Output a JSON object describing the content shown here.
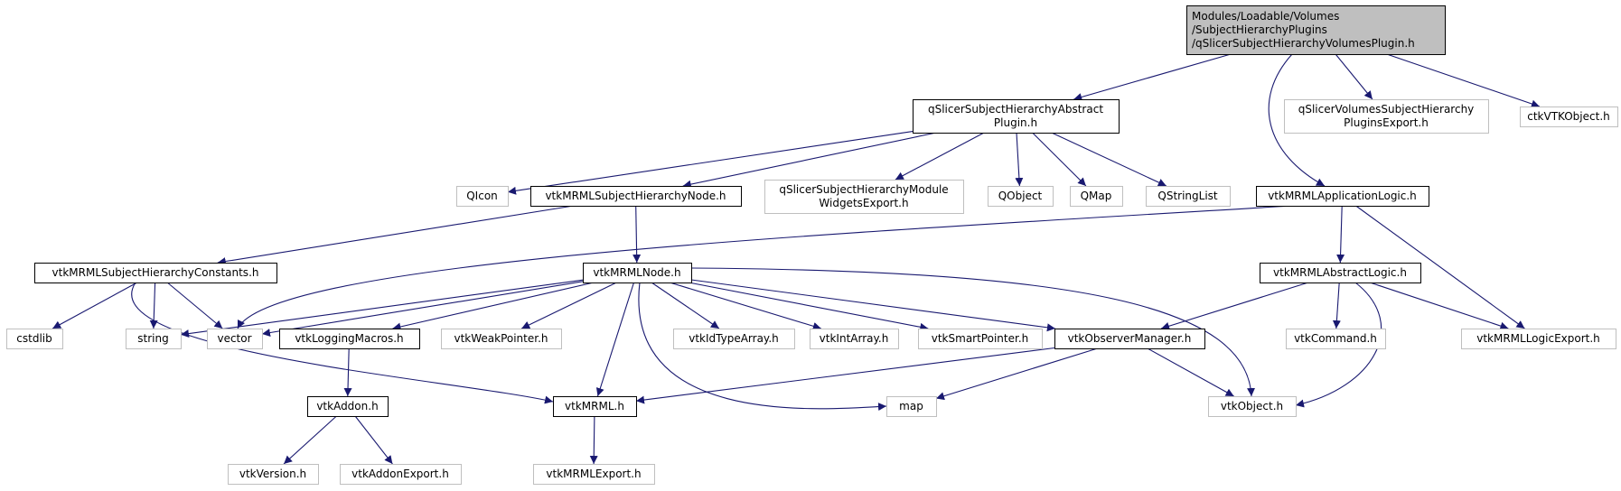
{
  "colors": {
    "edge": "#191970",
    "root_fill": "#bfbfbf",
    "node_border": "#000000",
    "external_border": "#bfbfbf"
  },
  "nodes": [
    {
      "id": "root",
      "label": [
        "Modules/Loadable/Volumes",
        "/SubjectHierarchyPlugins",
        "/qSlicerSubjectHierarchyVolumesPlugin.h"
      ],
      "kind": "root"
    },
    {
      "id": "abstractPlugin",
      "label": [
        "qSlicerSubjectHierarchyAbstract",
        "Plugin.h"
      ],
      "kind": "solid"
    },
    {
      "id": "volExport",
      "label": [
        "qSlicerVolumesSubjectHierarchy",
        "PluginsExport.h"
      ],
      "kind": "ext"
    },
    {
      "id": "ctkVTKObject",
      "label": [
        "ctkVTKObject.h"
      ],
      "kind": "ext"
    },
    {
      "id": "QIcon",
      "label": [
        "QIcon"
      ],
      "kind": "ext"
    },
    {
      "id": "shNode",
      "label": [
        "vtkMRMLSubjectHierarchyNode.h"
      ],
      "kind": "solid"
    },
    {
      "id": "moduleWidgetsExport",
      "label": [
        "qSlicerSubjectHierarchyModule",
        "WidgetsExport.h"
      ],
      "kind": "ext"
    },
    {
      "id": "QObject",
      "label": [
        "QObject"
      ],
      "kind": "ext"
    },
    {
      "id": "QMap",
      "label": [
        "QMap"
      ],
      "kind": "ext"
    },
    {
      "id": "QStringList",
      "label": [
        "QStringList"
      ],
      "kind": "ext"
    },
    {
      "id": "appLogic",
      "label": [
        "vtkMRMLApplicationLogic.h"
      ],
      "kind": "solid"
    },
    {
      "id": "shConstants",
      "label": [
        "vtkMRMLSubjectHierarchyConstants.h"
      ],
      "kind": "solid"
    },
    {
      "id": "mrmlNode",
      "label": [
        "vtkMRMLNode.h"
      ],
      "kind": "solid"
    },
    {
      "id": "abstractLogic",
      "label": [
        "vtkMRMLAbstractLogic.h"
      ],
      "kind": "solid"
    },
    {
      "id": "cstdlib",
      "label": [
        "cstdlib"
      ],
      "kind": "ext"
    },
    {
      "id": "string",
      "label": [
        "string"
      ],
      "kind": "ext"
    },
    {
      "id": "vector",
      "label": [
        "vector"
      ],
      "kind": "ext"
    },
    {
      "id": "loggingMacros",
      "label": [
        "vtkLoggingMacros.h"
      ],
      "kind": "solid"
    },
    {
      "id": "weakPointer",
      "label": [
        "vtkWeakPointer.h"
      ],
      "kind": "ext"
    },
    {
      "id": "idTypeArray",
      "label": [
        "vtkIdTypeArray.h"
      ],
      "kind": "ext"
    },
    {
      "id": "intArray",
      "label": [
        "vtkIntArray.h"
      ],
      "kind": "ext"
    },
    {
      "id": "smartPointer",
      "label": [
        "vtkSmartPointer.h"
      ],
      "kind": "ext"
    },
    {
      "id": "observerManager",
      "label": [
        "vtkObserverManager.h"
      ],
      "kind": "solid"
    },
    {
      "id": "command",
      "label": [
        "vtkCommand.h"
      ],
      "kind": "ext"
    },
    {
      "id": "logicExport",
      "label": [
        "vtkMRMLLogicExport.h"
      ],
      "kind": "ext"
    },
    {
      "id": "addon",
      "label": [
        "vtkAddon.h"
      ],
      "kind": "solid"
    },
    {
      "id": "mrml",
      "label": [
        "vtkMRML.h"
      ],
      "kind": "solid"
    },
    {
      "id": "map",
      "label": [
        "map"
      ],
      "kind": "ext"
    },
    {
      "id": "vtkObject",
      "label": [
        "vtkObject.h"
      ],
      "kind": "ext"
    },
    {
      "id": "version",
      "label": [
        "vtkVersion.h"
      ],
      "kind": "ext"
    },
    {
      "id": "addonExport",
      "label": [
        "vtkAddonExport.h"
      ],
      "kind": "ext"
    },
    {
      "id": "mrmlExport",
      "label": [
        "vtkMRMLExport.h"
      ],
      "kind": "ext"
    }
  ],
  "edges": [
    [
      "root",
      "abstractPlugin"
    ],
    [
      "root",
      "volExport"
    ],
    [
      "root",
      "ctkVTKObject"
    ],
    [
      "root",
      "appLogic"
    ],
    [
      "abstractPlugin",
      "QIcon"
    ],
    [
      "abstractPlugin",
      "shNode"
    ],
    [
      "abstractPlugin",
      "moduleWidgetsExport"
    ],
    [
      "abstractPlugin",
      "QObject"
    ],
    [
      "abstractPlugin",
      "QMap"
    ],
    [
      "abstractPlugin",
      "QStringList"
    ],
    [
      "shNode",
      "shConstants"
    ],
    [
      "shNode",
      "mrmlNode"
    ],
    [
      "appLogic",
      "vector"
    ],
    [
      "appLogic",
      "abstractLogic"
    ],
    [
      "appLogic",
      "logicExport"
    ],
    [
      "shConstants",
      "cstdlib"
    ],
    [
      "shConstants",
      "string"
    ],
    [
      "shConstants",
      "vector"
    ],
    [
      "shConstants",
      "mrml"
    ],
    [
      "mrmlNode",
      "string"
    ],
    [
      "mrmlNode",
      "vector"
    ],
    [
      "mrmlNode",
      "loggingMacros"
    ],
    [
      "mrmlNode",
      "weakPointer"
    ],
    [
      "mrmlNode",
      "idTypeArray"
    ],
    [
      "mrmlNode",
      "intArray"
    ],
    [
      "mrmlNode",
      "smartPointer"
    ],
    [
      "mrmlNode",
      "observerManager"
    ],
    [
      "mrmlNode",
      "vtkObject"
    ],
    [
      "mrmlNode",
      "mrml"
    ],
    [
      "mrmlNode",
      "map"
    ],
    [
      "abstractLogic",
      "observerManager"
    ],
    [
      "abstractLogic",
      "command"
    ],
    [
      "abstractLogic",
      "logicExport"
    ],
    [
      "abstractLogic",
      "vtkObject"
    ],
    [
      "loggingMacros",
      "addon"
    ],
    [
      "observerManager",
      "mrml"
    ],
    [
      "observerManager",
      "map"
    ],
    [
      "observerManager",
      "vtkObject"
    ],
    [
      "addon",
      "version"
    ],
    [
      "addon",
      "addonExport"
    ],
    [
      "mrml",
      "mrmlExport"
    ]
  ]
}
